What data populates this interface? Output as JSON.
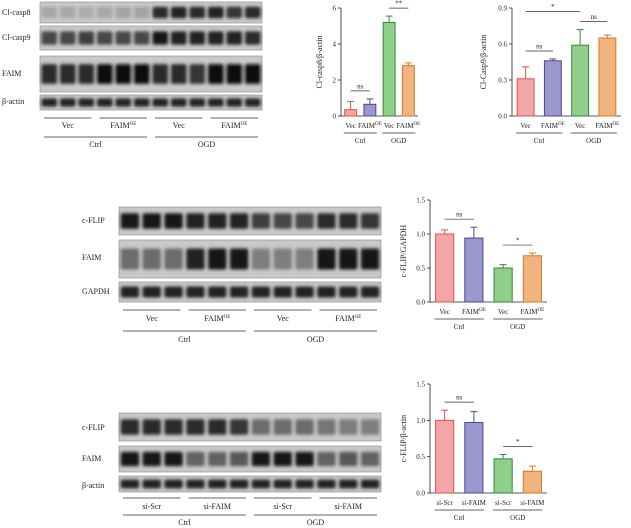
{
  "blots": [
    {
      "id": "blot-a",
      "rows": [
        "Cl-casp8",
        "Cl-casp9",
        "FAIM",
        "β-actin"
      ],
      "group_labels": [
        "Vec",
        "FAIM",
        "Vec",
        "FAIM"
      ],
      "group_supers": [
        "",
        "OE",
        "",
        "OE"
      ],
      "condition_labels": [
        "Ctrl",
        "OGD"
      ]
    },
    {
      "id": "blot-b",
      "rows": [
        "c-FLIP",
        "FAIM",
        "GAPDH"
      ],
      "group_labels": [
        "Vec",
        "FAIM",
        "Vec",
        "FAIM"
      ],
      "group_supers": [
        "",
        "OE",
        "",
        "OE"
      ],
      "condition_labels": [
        "Ctrl",
        "OGD"
      ]
    },
    {
      "id": "blot-c",
      "rows": [
        "c-FLIP",
        "FAIM",
        "β-actin"
      ],
      "group_labels": [
        "si-Scr",
        "si-FAIM",
        "si-Scr",
        "si-FAIM"
      ],
      "group_supers": [
        "",
        "",
        "",
        ""
      ],
      "condition_labels": [
        "Ctrl",
        "OGD"
      ]
    }
  ],
  "chart_data": [
    {
      "type": "bar",
      "ylabel": "Cl-casp8/β-actin",
      "ylim": [
        0,
        6
      ],
      "yticks": [
        "0",
        "2",
        "4",
        "6"
      ],
      "categories": [
        "Vec",
        "FAIM",
        "Vec",
        "FAIM"
      ],
      "category_supers": [
        "",
        "OE",
        "",
        "OE"
      ],
      "values": [
        0.35,
        0.65,
        5.2,
        2.8
      ],
      "errors": [
        0.45,
        0.3,
        0.35,
        0.15
      ],
      "colors": [
        "#f4a6a6",
        "#9c98cf",
        "#8fcf8a",
        "#f2b47e"
      ],
      "edge_colors": [
        "#d9534f",
        "#4b468f",
        "#2e8b3a",
        "#d9772b"
      ],
      "group_labels": [
        "Ctrl",
        "OGD"
      ],
      "significance": [
        {
          "from": 0,
          "to": 1,
          "label": "ns"
        },
        {
          "from": 2,
          "to": 3,
          "label": "**"
        }
      ]
    },
    {
      "type": "bar",
      "ylabel": "Cl-Casp9/β-actin",
      "ylim": [
        0,
        0.9
      ],
      "yticks": [
        "0.0",
        "0.3",
        "0.6",
        "0.9"
      ],
      "categories": [
        "Vec",
        "FAIM",
        "Vec",
        "FAIM"
      ],
      "category_supers": [
        "",
        "OE",
        "",
        "OE"
      ],
      "values": [
        0.31,
        0.46,
        0.59,
        0.65
      ],
      "errors": [
        0.1,
        0.015,
        0.13,
        0.025
      ],
      "colors": [
        "#f4a6a6",
        "#9c98cf",
        "#8fcf8a",
        "#f2b47e"
      ],
      "edge_colors": [
        "#d9534f",
        "#4b468f",
        "#2e8b3a",
        "#d9772b"
      ],
      "group_labels": [
        "Ctrl",
        "OGD"
      ],
      "significance": [
        {
          "from": 0,
          "to": 1,
          "label": "ns"
        },
        {
          "from": 0,
          "to": 2,
          "label": "*"
        },
        {
          "from": 2,
          "to": 3,
          "label": "ns"
        }
      ]
    },
    {
      "type": "bar",
      "ylabel": "c-FLIP/GAPDH",
      "ylim": [
        0,
        1.5
      ],
      "yticks": [
        "0.0",
        "0.5",
        "1.0",
        "1.5"
      ],
      "categories": [
        "Vec",
        "FAIM",
        "Vec",
        "FAIM"
      ],
      "category_supers": [
        "",
        "OE",
        "",
        "OE"
      ],
      "values": [
        1.0,
        0.94,
        0.5,
        0.68
      ],
      "errors": [
        0.06,
        0.16,
        0.05,
        0.04
      ],
      "colors": [
        "#f4a6a6",
        "#9c98cf",
        "#8fcf8a",
        "#f2b47e"
      ],
      "edge_colors": [
        "#d9534f",
        "#4b468f",
        "#2e8b3a",
        "#d9772b"
      ],
      "group_labels": [
        "Ctrl",
        "OGD"
      ],
      "significance": [
        {
          "from": 0,
          "to": 1,
          "label": "ns"
        },
        {
          "from": 2,
          "to": 3,
          "label": "*"
        }
      ]
    },
    {
      "type": "bar",
      "ylabel": "c-FLIP/β-actin",
      "ylim": [
        0,
        1.5
      ],
      "yticks": [
        "0.0",
        "0.5",
        "1.0",
        "1.5"
      ],
      "categories": [
        "si-Scr",
        "si-FAIM",
        "si-Scr",
        "si-FAIM"
      ],
      "category_supers": [
        "",
        "",
        "",
        ""
      ],
      "values": [
        1.0,
        0.97,
        0.47,
        0.3
      ],
      "errors": [
        0.14,
        0.15,
        0.06,
        0.07
      ],
      "colors": [
        "#f4a6a6",
        "#9c98cf",
        "#8fcf8a",
        "#f2b47e"
      ],
      "edge_colors": [
        "#d9534f",
        "#4b468f",
        "#2e8b3a",
        "#d9772b"
      ],
      "group_labels": [
        "Ctrl",
        "OGD"
      ],
      "significance": [
        {
          "from": 0,
          "to": 1,
          "label": "ns"
        },
        {
          "from": 2,
          "to": 3,
          "label": "*"
        }
      ]
    }
  ]
}
